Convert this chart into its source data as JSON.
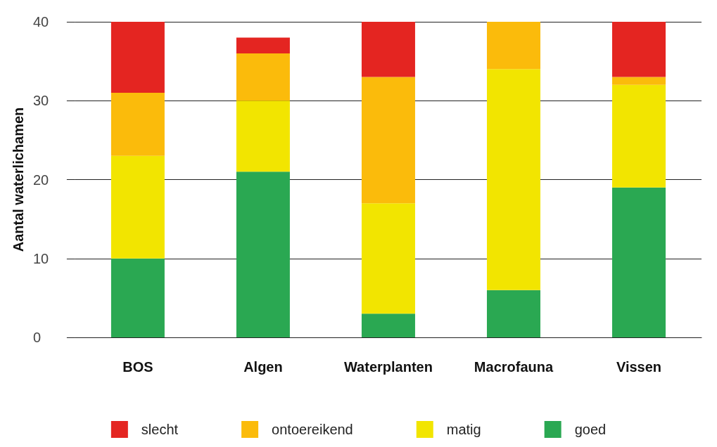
{
  "chart_data": {
    "type": "bar",
    "stacked": true,
    "ylabel": "Aantal waterlichamen",
    "categories": [
      "BOS",
      "Algen",
      "Waterplanten",
      "Macrofauna",
      "Vissen"
    ],
    "series": [
      {
        "name": "goed",
        "color": "#2aa852",
        "values": [
          10,
          21,
          3,
          6,
          19
        ]
      },
      {
        "name": "matig",
        "color": "#f2e500",
        "values": [
          13,
          9,
          14,
          28,
          13
        ]
      },
      {
        "name": "ontoereikend",
        "color": "#fbbb0b",
        "values": [
          8,
          6,
          16,
          6,
          1
        ]
      },
      {
        "name": "slecht",
        "color": "#e42521",
        "values": [
          9,
          2,
          7,
          0,
          7
        ]
      }
    ],
    "ylim": [
      0,
      40
    ],
    "yticks": [
      0,
      10,
      20,
      30,
      40
    ],
    "grid": "y",
    "legend": "bottom"
  }
}
